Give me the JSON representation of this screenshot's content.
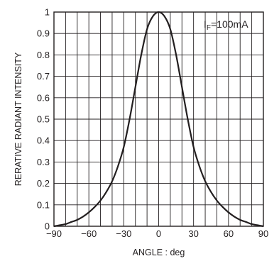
{
  "chart_data": {
    "type": "line",
    "title": "",
    "xlabel": "ANGLE : deg",
    "ylabel": "RERATIVE RADIANT INTENSITY",
    "xlim": [
      -90,
      90
    ],
    "ylim": [
      0,
      1
    ],
    "x_ticks": [
      -90,
      -60,
      -30,
      0,
      30,
      60,
      90
    ],
    "x_tick_labels": [
      "−90",
      "−60",
      "−30",
      "0",
      "30",
      "60",
      "90"
    ],
    "y_ticks": [
      0,
      0.1,
      0.2,
      0.3,
      0.4,
      0.5,
      0.6,
      0.7,
      0.8,
      0.9,
      1
    ],
    "y_tick_labels": [
      "0",
      "0.1",
      "0.2",
      "0.3",
      "0.4",
      "0.5",
      "0.6",
      "0.7",
      "0.8",
      "0.9",
      "1"
    ],
    "grid": true,
    "annotation": {
      "prefix": "I",
      "sub": "F",
      "suffix": "=100mA"
    },
    "series": [
      {
        "color": "#231f20",
        "x": [
          -90,
          -85,
          -80,
          -75,
          -70,
          -65,
          -60,
          -55,
          -50,
          -45,
          -40,
          -35,
          -30,
          -25,
          -20,
          -15,
          -10,
          -5,
          0,
          5,
          10,
          15,
          20,
          25,
          30,
          35,
          40,
          45,
          50,
          55,
          60,
          65,
          70,
          75,
          80,
          85,
          90
        ],
        "y": [
          0.0,
          0.005,
          0.01,
          0.02,
          0.03,
          0.045,
          0.065,
          0.09,
          0.12,
          0.16,
          0.21,
          0.28,
          0.37,
          0.5,
          0.65,
          0.8,
          0.92,
          0.98,
          1.0,
          0.98,
          0.92,
          0.8,
          0.65,
          0.5,
          0.37,
          0.28,
          0.21,
          0.16,
          0.12,
          0.09,
          0.065,
          0.045,
          0.03,
          0.02,
          0.01,
          0.005,
          0.0
        ]
      }
    ]
  }
}
